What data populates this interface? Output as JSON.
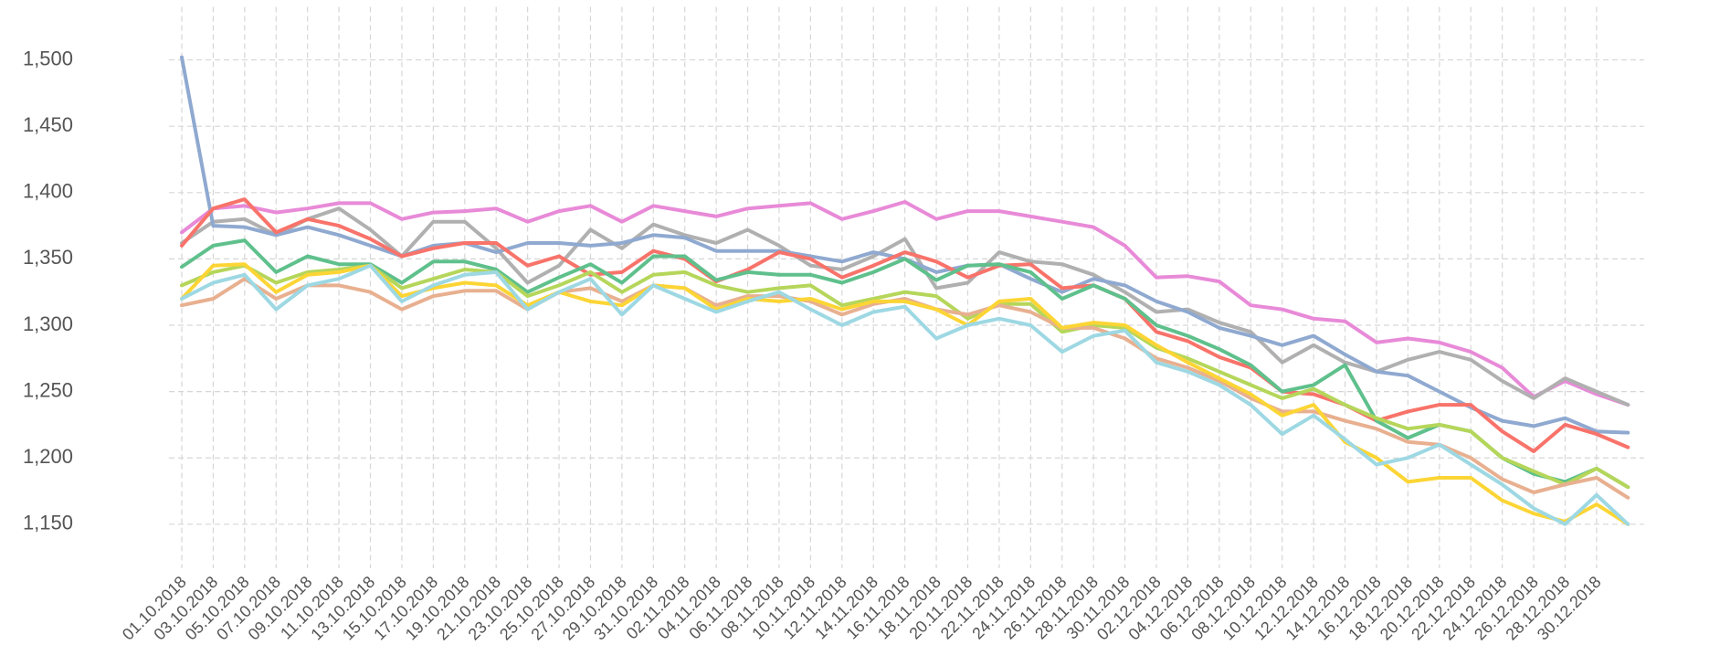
{
  "chart_data": {
    "type": "line",
    "categories": [
      "01.10.2018",
      "03.10.2018",
      "05.10.2018",
      "07.10.2018",
      "09.10.2018",
      "11.10.2018",
      "13.10.2018",
      "15.10.2018",
      "17.10.2018",
      "19.10.2018",
      "21.10.2018",
      "23.10.2018",
      "25.10.2018",
      "27.10.2018",
      "29.10.2018",
      "31.10.2018",
      "02.11.2018",
      "04.11.2018",
      "06.11.2018",
      "08.11.2018",
      "10.11.2018",
      "12.11.2018",
      "14.11.2018",
      "16.11.2018",
      "18.11.2018",
      "20.11.2018",
      "22.11.2018",
      "24.11.2018",
      "26.11.2018",
      "28.11.2018",
      "30.11.2018",
      "02.12.2018",
      "04.12.2018",
      "06.12.2018",
      "08.12.2018",
      "10.12.2018",
      "12.12.2018",
      "14.12.2018",
      "16.12.2018",
      "18.12.2018",
      "20.12.2018",
      "22.12.2018",
      "24.12.2018",
      "26.12.2018",
      "28.12.2018",
      "30.12.2018",
      null
    ],
    "series": [
      {
        "color": "#e88ad8",
        "values": [
          1370,
          1388,
          1390,
          1385,
          1388,
          1392,
          1392,
          1380,
          1385,
          1386,
          1388,
          1378,
          1386,
          1390,
          1378,
          1390,
          1386,
          1382,
          1388,
          1390,
          1392,
          1380,
          1386,
          1393,
          1380,
          1386,
          1386,
          1382,
          1378,
          1374,
          1360,
          1336,
          1337,
          1333,
          1315,
          1312,
          1305,
          1303,
          1287,
          1290,
          1287,
          1280,
          1268,
          1246,
          1258,
          1248,
          1240
        ]
      },
      {
        "color": "#b0b0b0",
        "values": [
          1362,
          1378,
          1380,
          1368,
          1380,
          1388,
          1372,
          1352,
          1378,
          1378,
          1358,
          1332,
          1345,
          1372,
          1358,
          1376,
          1368,
          1362,
          1372,
          1360,
          1345,
          1342,
          1352,
          1365,
          1328,
          1332,
          1355,
          1348,
          1346,
          1338,
          1325,
          1310,
          1312,
          1302,
          1295,
          1272,
          1285,
          1272,
          1265,
          1274,
          1280,
          1274,
          1258,
          1245,
          1260,
          1250,
          1240
        ]
      },
      {
        "color": "#8fa9d0",
        "values": [
          1502,
          1375,
          1374,
          1368,
          1374,
          1368,
          1360,
          1352,
          1360,
          1362,
          1355,
          1362,
          1362,
          1360,
          1362,
          1368,
          1366,
          1356,
          1356,
          1356,
          1352,
          1348,
          1355,
          1350,
          1340,
          1345,
          1346,
          1335,
          1325,
          1335,
          1330,
          1318,
          1310,
          1298,
          1292,
          1285,
          1292,
          1278,
          1265,
          1262,
          1250,
          1238,
          1228,
          1224,
          1230,
          1220,
          1219
        ]
      },
      {
        "color": "#f8736a",
        "values": [
          1360,
          1388,
          1395,
          1370,
          1380,
          1375,
          1365,
          1352,
          1358,
          1362,
          1362,
          1345,
          1352,
          1338,
          1340,
          1356,
          1350,
          1333,
          1342,
          1355,
          1350,
          1336,
          1345,
          1355,
          1348,
          1336,
          1345,
          1346,
          1328,
          1330,
          1320,
          1295,
          1288,
          1276,
          1268,
          1250,
          1248,
          1240,
          1228,
          1235,
          1240,
          1240,
          1220,
          1205,
          1225,
          1218,
          1208
        ]
      },
      {
        "color": "#5fc08c",
        "values": [
          1344,
          1360,
          1364,
          1340,
          1352,
          1346,
          1346,
          1332,
          1348,
          1348,
          1342,
          1325,
          1336,
          1346,
          1332,
          1352,
          1352,
          1334,
          1340,
          1338,
          1338,
          1332,
          1340,
          1350,
          1334,
          1345,
          1346,
          1340,
          1320,
          1330,
          1320,
          1300,
          1292,
          1282,
          1270,
          1250,
          1255,
          1270,
          1228,
          1215,
          1225,
          1220,
          1200,
          1188,
          1182,
          1192,
          1178
        ]
      },
      {
        "color": "#b5d65a",
        "values": [
          1330,
          1340,
          1345,
          1332,
          1340,
          1342,
          1345,
          1328,
          1335,
          1342,
          1340,
          1322,
          1330,
          1340,
          1325,
          1338,
          1340,
          1330,
          1325,
          1328,
          1330,
          1315,
          1320,
          1325,
          1322,
          1305,
          1316,
          1316,
          1295,
          1300,
          1298,
          1283,
          1275,
          1265,
          1255,
          1245,
          1252,
          1240,
          1230,
          1222,
          1225,
          1220,
          1200,
          1190,
          1180,
          1192,
          1178
        ]
      },
      {
        "color": "#e8b090",
        "values": [
          1315,
          1320,
          1335,
          1320,
          1330,
          1330,
          1325,
          1312,
          1322,
          1326,
          1326,
          1312,
          1325,
          1328,
          1318,
          1330,
          1328,
          1315,
          1322,
          1322,
          1318,
          1308,
          1316,
          1320,
          1312,
          1308,
          1315,
          1310,
          1298,
          1298,
          1290,
          1275,
          1268,
          1258,
          1245,
          1235,
          1235,
          1228,
          1222,
          1212,
          1210,
          1200,
          1184,
          1174,
          1180,
          1185,
          1170
        ]
      },
      {
        "color": "#fcd535",
        "values": [
          1320,
          1345,
          1346,
          1325,
          1338,
          1340,
          1345,
          1322,
          1328,
          1332,
          1330,
          1315,
          1325,
          1318,
          1315,
          1330,
          1328,
          1312,
          1320,
          1318,
          1320,
          1312,
          1318,
          1318,
          1312,
          1300,
          1318,
          1320,
          1298,
          1302,
          1300,
          1285,
          1272,
          1260,
          1248,
          1232,
          1240,
          1212,
          1200,
          1182,
          1185,
          1185,
          1168,
          1158,
          1152,
          1165,
          1150
        ]
      },
      {
        "color": "#9dd8e3",
        "values": [
          1320,
          1332,
          1338,
          1312,
          1330,
          1335,
          1345,
          1318,
          1330,
          1338,
          1340,
          1312,
          1325,
          1335,
          1308,
          1330,
          1320,
          1310,
          1318,
          1325,
          1312,
          1300,
          1310,
          1314,
          1290,
          1300,
          1305,
          1300,
          1280,
          1292,
          1296,
          1272,
          1265,
          1255,
          1240,
          1218,
          1232,
          1214,
          1195,
          1200,
          1210,
          1195,
          1180,
          1162,
          1150,
          1172,
          1150
        ]
      }
    ],
    "ylim": [
      1120,
      1540
    ],
    "yticks": [
      {
        "value": 1150,
        "label": "1,150"
      },
      {
        "value": 1200,
        "label": "1,200"
      },
      {
        "value": 1250,
        "label": "1,250"
      },
      {
        "value": 1300,
        "label": "1,300"
      },
      {
        "value": 1350,
        "label": "1,350"
      },
      {
        "value": 1400,
        "label": "1,400"
      },
      {
        "value": 1450,
        "label": "1,450"
      },
      {
        "value": 1500,
        "label": "1,500"
      }
    ],
    "grid": true
  }
}
